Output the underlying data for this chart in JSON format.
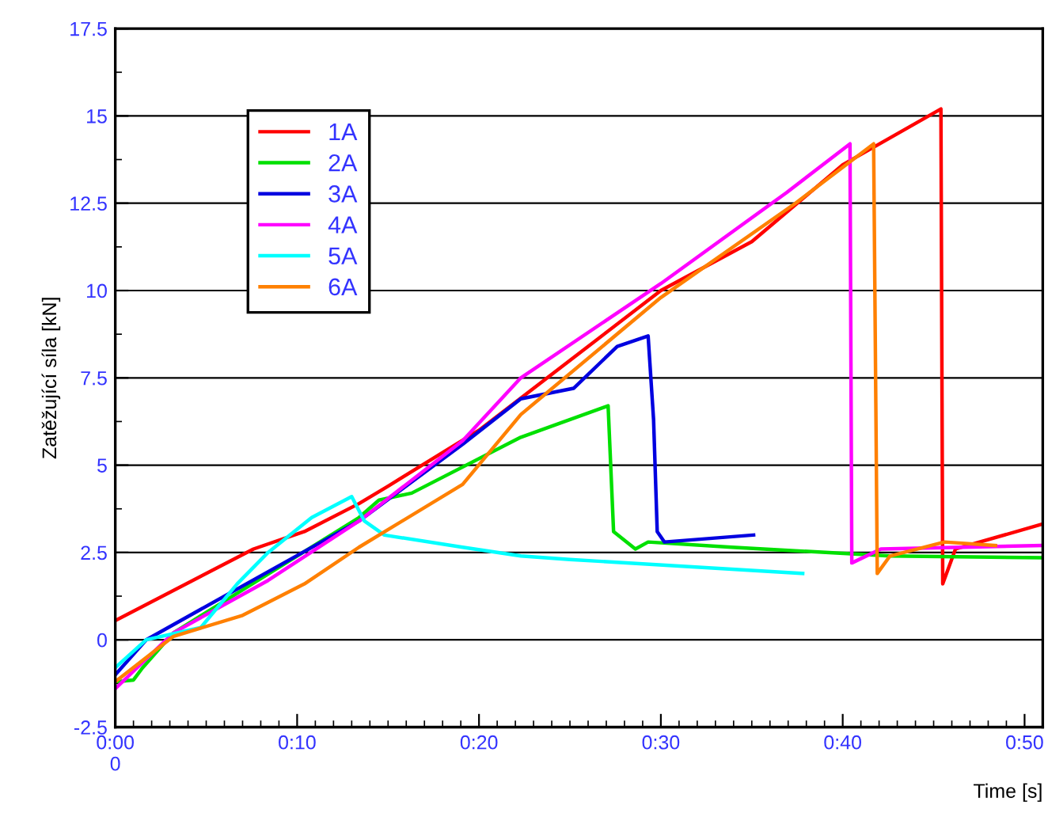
{
  "chart_data": {
    "type": "line",
    "ylabel": "Zatěžující síla [kN]",
    "xlabel": "Time [s]",
    "xlim": [
      0,
      51
    ],
    "xticks": [
      {
        "value": 0,
        "label": "0:00\n0"
      },
      {
        "value": 10,
        "label": "0:10"
      },
      {
        "value": 20,
        "label": "0:20"
      },
      {
        "value": 30,
        "label": "0:30"
      },
      {
        "value": 40,
        "label": "0:40"
      },
      {
        "value": 50,
        "label": "0:50"
      }
    ],
    "ylim": [
      -2.5,
      17.5
    ],
    "yticks": [
      -2.5,
      0,
      2.5,
      5,
      7.5,
      10,
      12.5,
      15,
      17.5
    ],
    "grid": "y",
    "legend": "top left",
    "line_style": "solid",
    "marker": "none",
    "series": [
      {
        "name": "1A",
        "color": "#ff0000",
        "x": [
          0,
          7.6,
          10.4,
          13.4,
          15,
          20,
          25,
          30,
          35,
          40,
          45.4,
          45.5,
          46.2,
          50.9
        ],
        "values": [
          0.55,
          2.6,
          3.1,
          3.9,
          4.4,
          6.0,
          8.0,
          10.0,
          11.4,
          13.6,
          15.2,
          1.6,
          2.6,
          3.3
        ]
      },
      {
        "name": "2A",
        "color": "#00e000",
        "x": [
          0,
          1,
          1.5,
          3.2,
          13.4,
          14.5,
          16.3,
          22.3,
          27.1,
          27.4,
          28.6,
          29.3,
          33.9,
          42.6,
          50.9
        ],
        "values": [
          -1.2,
          -1.15,
          -0.8,
          0.2,
          3.5,
          4.0,
          4.2,
          5.8,
          6.7,
          3.1,
          2.6,
          2.8,
          2.65,
          2.4,
          2.35
        ]
      },
      {
        "name": "3A",
        "color": "#0000e0",
        "x": [
          0,
          1.7,
          13.4,
          19.1,
          22.3,
          25.2,
          27.6,
          29.3,
          29.6,
          29.8,
          30.2,
          35.1
        ],
        "values": [
          -1.0,
          0,
          3.4,
          5.6,
          6.9,
          7.2,
          8.4,
          8.7,
          6.3,
          3.1,
          2.8,
          3.0
        ]
      },
      {
        "name": "4A",
        "color": "#ff00ff",
        "x": [
          0,
          3.2,
          8.4,
          13.4,
          19.1,
          22.3,
          30,
          36.9,
          40.4,
          40.5,
          42.1,
          50.9
        ],
        "values": [
          -1.4,
          0.2,
          1.7,
          3.4,
          5.7,
          7.5,
          10.2,
          12.8,
          14.2,
          2.2,
          2.6,
          2.7
        ]
      },
      {
        "name": "5A",
        "color": "#00ffff",
        "x": [
          0,
          1.7,
          4.7,
          6.7,
          8.4,
          10.8,
          13.0,
          13.7,
          14.8,
          19.1,
          22.3,
          25,
          37.8
        ],
        "values": [
          -0.8,
          0,
          0.35,
          1.6,
          2.5,
          3.5,
          4.1,
          3.4,
          3.0,
          2.65,
          2.4,
          2.3,
          1.9
        ]
      },
      {
        "name": "6A",
        "color": "#ff8000",
        "x": [
          0,
          3.2,
          7,
          10.4,
          13.4,
          19.1,
          22.3,
          30,
          37.4,
          41.7,
          41.9,
          42.6,
          45.6,
          48.4
        ],
        "values": [
          -1.2,
          0.1,
          0.7,
          1.6,
          2.65,
          4.45,
          6.45,
          9.8,
          12.5,
          14.2,
          1.9,
          2.4,
          2.8,
          2.7
        ]
      }
    ]
  }
}
